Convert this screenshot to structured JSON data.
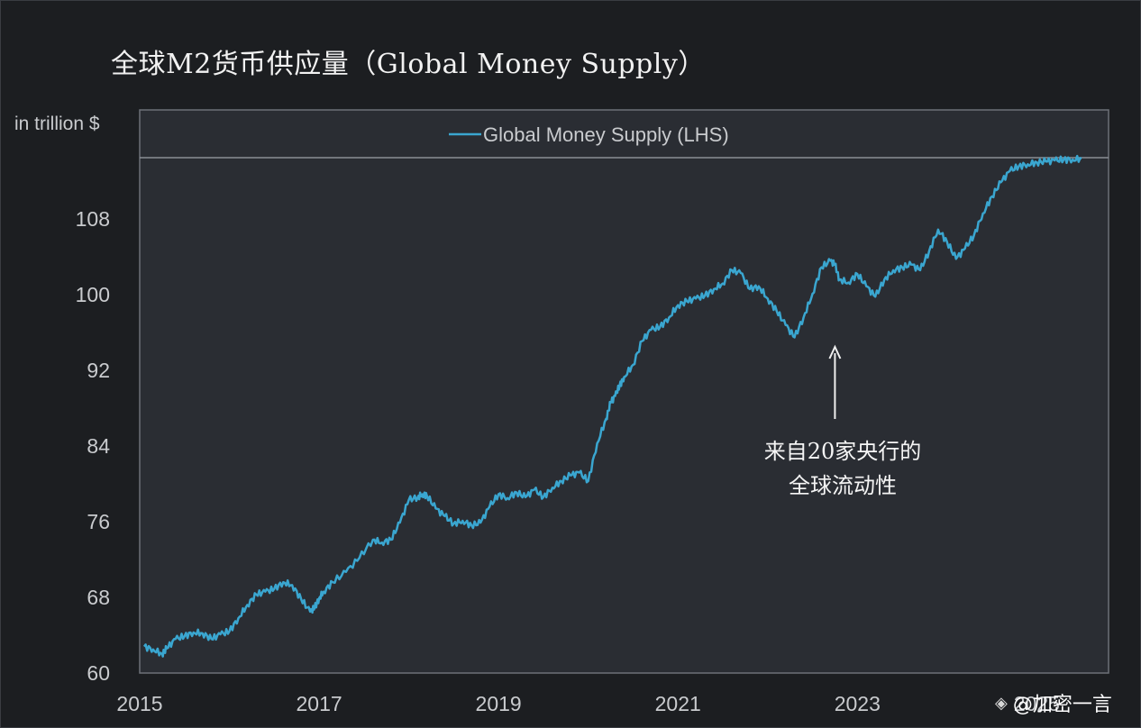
{
  "header": {
    "title": "全球M2货币供应量（Global Money Supply）",
    "unit_label": "in trillion $"
  },
  "annotation": {
    "line1": "来自20家央行的",
    "line2": "全球流动性"
  },
  "watermark": {
    "text": "@加密一言",
    "logo_icon": "diamond-logo-icon"
  },
  "colors": {
    "background": "#1c1e21",
    "plot_background": "#2a2d33",
    "series": "#3aa6d0",
    "text": "#c9cbce"
  },
  "chart_data": {
    "type": "line",
    "title": "全球M2货币供应量（Global Money Supply）",
    "ylabel": "in trillion $",
    "xlabel": "",
    "x_ticks": [
      "2015",
      "2017",
      "2019",
      "2021",
      "2023",
      "2025"
    ],
    "y_ticks": [
      60,
      68,
      76,
      84,
      92,
      100,
      108
    ],
    "xlim": [
      2015.0,
      2025.8
    ],
    "ylim": [
      60,
      114.5
    ],
    "grid": false,
    "legend": {
      "position": "top",
      "entries": [
        "Global Money Supply (LHS)"
      ]
    },
    "series": [
      {
        "name": "Global Money Supply (LHS)",
        "x": [
          2015.05,
          2015.15,
          2015.25,
          2015.3,
          2015.4,
          2015.5,
          2015.6,
          2015.7,
          2015.8,
          2015.9,
          2016.0,
          2016.1,
          2016.2,
          2016.3,
          2016.4,
          2016.5,
          2016.6,
          2016.7,
          2016.8,
          2016.9,
          2016.95,
          2017.0,
          2017.05,
          2017.15,
          2017.3,
          2017.45,
          2017.6,
          2017.7,
          2017.8,
          2017.9,
          2018.0,
          2018.1,
          2018.15,
          2018.2,
          2018.3,
          2018.4,
          2018.5,
          2018.6,
          2018.7,
          2018.8,
          2018.9,
          2019.0,
          2019.1,
          2019.2,
          2019.3,
          2019.4,
          2019.5,
          2019.6,
          2019.7,
          2019.8,
          2019.9,
          2020.0,
          2020.1,
          2020.2,
          2020.25,
          2020.3,
          2020.35,
          2020.4,
          2020.5,
          2020.6,
          2020.7,
          2020.8,
          2020.9,
          2021.0,
          2021.1,
          2021.2,
          2021.3,
          2021.4,
          2021.5,
          2021.6,
          2021.7,
          2021.8,
          2021.9,
          2022.0,
          2022.1,
          2022.2,
          2022.3,
          2022.4,
          2022.5,
          2022.6,
          2022.7,
          2022.75,
          2022.8,
          2022.9,
          2023.0,
          2023.1,
          2023.2,
          2023.3,
          2023.4,
          2023.5,
          2023.6,
          2023.7,
          2023.8,
          2023.9,
          2024.0,
          2024.1,
          2024.2,
          2024.3,
          2024.4,
          2024.5,
          2024.6,
          2024.7,
          2024.8,
          2024.9,
          2025.0,
          2025.1,
          2025.2,
          2025.3,
          2025.4,
          2025.5
        ],
        "values": [
          62.8,
          62.5,
          62.0,
          62.6,
          63.6,
          63.9,
          64.3,
          64.2,
          63.6,
          64.1,
          64.4,
          65.8,
          67.2,
          68.3,
          68.6,
          68.9,
          69.6,
          69.3,
          67.8,
          66.5,
          66.9,
          67.9,
          68.6,
          69.6,
          70.7,
          72.2,
          74.1,
          73.8,
          74.1,
          75.9,
          78.3,
          78.6,
          78.9,
          78.8,
          77.4,
          76.6,
          75.8,
          76.1,
          75.6,
          75.9,
          77.6,
          78.9,
          78.5,
          79.1,
          78.6,
          79.4,
          78.6,
          79.6,
          80.3,
          80.9,
          81.2,
          80.3,
          84.3,
          86.9,
          88.6,
          89.3,
          90.4,
          91.3,
          92.6,
          95.1,
          96.3,
          96.6,
          97.6,
          98.9,
          99.3,
          99.6,
          99.9,
          100.6,
          101.2,
          102.6,
          102.3,
          100.6,
          100.9,
          99.6,
          98.3,
          96.8,
          95.5,
          97.6,
          100.1,
          102.9,
          103.6,
          103.2,
          101.6,
          101.3,
          102.2,
          100.9,
          99.8,
          101.6,
          102.6,
          102.9,
          103.2,
          102.6,
          104.6,
          106.9,
          105.6,
          103.8,
          104.9,
          106.3,
          108.6,
          110.4,
          111.9,
          113.1,
          113.6,
          113.8,
          114.0,
          114.1,
          114.2,
          114.3,
          114.3,
          114.4
        ]
      }
    ]
  }
}
